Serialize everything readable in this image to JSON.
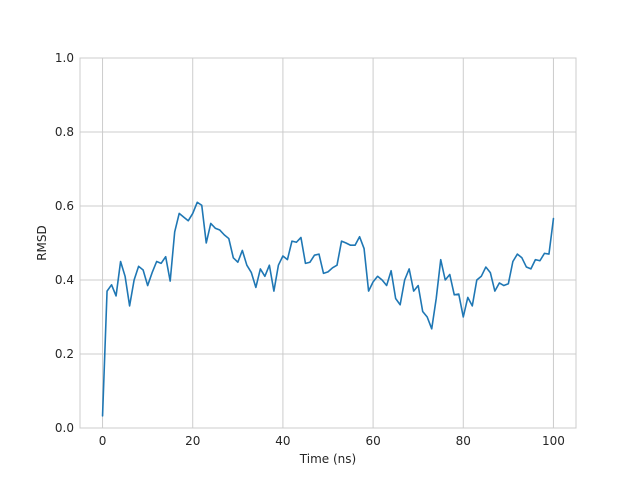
{
  "chart_data": {
    "type": "line",
    "title": "",
    "xlabel": "Time (ns)",
    "ylabel": "RMSD",
    "xlim": [
      -5,
      105
    ],
    "ylim": [
      0.0,
      1.0
    ],
    "xticks": [
      0,
      20,
      40,
      60,
      80,
      100
    ],
    "yticks": [
      0.0,
      0.2,
      0.4,
      0.6,
      0.8,
      1.0
    ],
    "xtick_labels": [
      "0",
      "20",
      "40",
      "60",
      "80",
      "100"
    ],
    "ytick_labels": [
      "0.0",
      "0.2",
      "0.4",
      "0.6",
      "0.8",
      "1.0"
    ],
    "grid": true,
    "line_color": "#1f77b4",
    "grid_color": "#cccccc",
    "series": [
      {
        "x": [
          0,
          1,
          2,
          3,
          4,
          5,
          6,
          7,
          8,
          9,
          10,
          11,
          12,
          13,
          14,
          15,
          16,
          17,
          18,
          19,
          20,
          21,
          22,
          23,
          24,
          25,
          26,
          27,
          28,
          29,
          30,
          31,
          32,
          33,
          34,
          35,
          36,
          37,
          38,
          39,
          40,
          41,
          42,
          43,
          44,
          45,
          46,
          47,
          48,
          49,
          50,
          51,
          52,
          53,
          54,
          55,
          56,
          57,
          58,
          59,
          60,
          61,
          62,
          63,
          64,
          65,
          66,
          67,
          68,
          69,
          70,
          71,
          72,
          73,
          74,
          75,
          76,
          77,
          78,
          79,
          80,
          81,
          82,
          83,
          84,
          85,
          86,
          87,
          88,
          89,
          90,
          91,
          92,
          93,
          94,
          95,
          96,
          97,
          98,
          99,
          100
        ],
        "values": [
          0.033,
          0.37,
          0.387,
          0.357,
          0.45,
          0.41,
          0.33,
          0.4,
          0.437,
          0.427,
          0.385,
          0.42,
          0.45,
          0.445,
          0.463,
          0.397,
          0.53,
          0.58,
          0.57,
          0.56,
          0.58,
          0.61,
          0.602,
          0.5,
          0.553,
          0.54,
          0.535,
          0.522,
          0.512,
          0.46,
          0.448,
          0.48,
          0.44,
          0.42,
          0.38,
          0.43,
          0.41,
          0.44,
          0.37,
          0.44,
          0.465,
          0.455,
          0.505,
          0.502,
          0.515,
          0.445,
          0.448,
          0.467,
          0.47,
          0.418,
          0.422,
          0.433,
          0.44,
          0.505,
          0.5,
          0.494,
          0.494,
          0.517,
          0.485,
          0.37,
          0.395,
          0.41,
          0.4,
          0.385,
          0.425,
          0.35,
          0.333,
          0.4,
          0.43,
          0.37,
          0.385,
          0.315,
          0.3,
          0.268,
          0.35,
          0.455,
          0.4,
          0.415,
          0.36,
          0.362,
          0.3,
          0.353,
          0.33,
          0.4,
          0.41,
          0.435,
          0.42,
          0.37,
          0.392,
          0.385,
          0.39,
          0.45,
          0.47,
          0.46,
          0.435,
          0.43,
          0.455,
          0.452,
          0.472,
          0.47,
          0.566
        ]
      }
    ]
  }
}
